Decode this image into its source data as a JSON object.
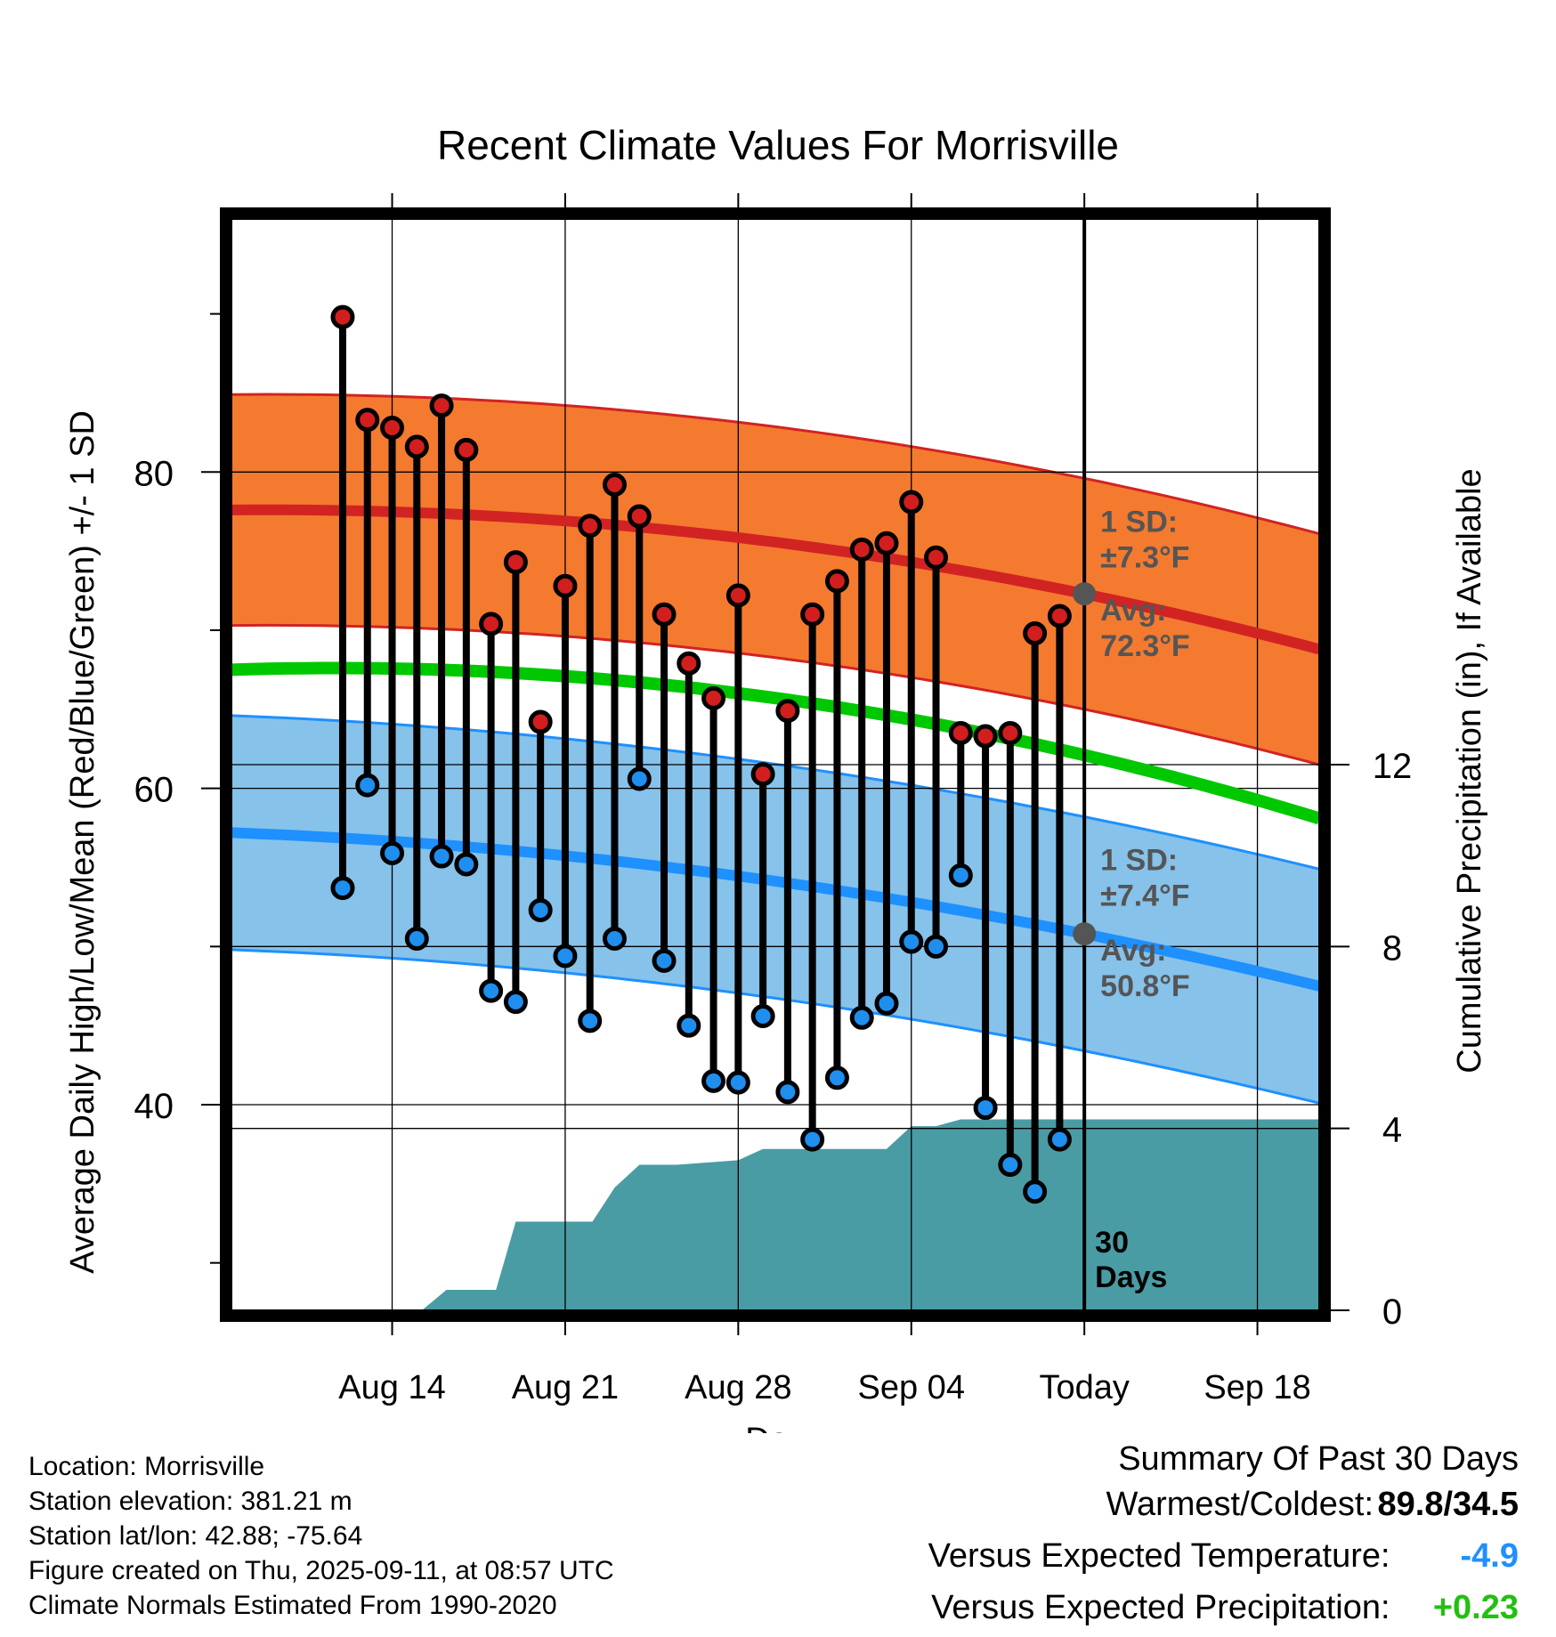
{
  "chart_data": {
    "type": "line",
    "title": "Recent Climate Values For Morrisville",
    "xlabel": "Day",
    "ylabel": "Average Daily High/Low/Mean (Red/Blue/Green) +/- 1 SD",
    "y2label": "Cumulative Precipitation (in), If Available",
    "x_range_days": [
      -34.5,
      9.5
    ],
    "ylim": [
      27,
      96
    ],
    "y2lim": [
      0,
      24
    ],
    "x_ticks": [
      {
        "day": -28,
        "label": "Aug 14"
      },
      {
        "day": -21,
        "label": "Aug 21"
      },
      {
        "day": -14,
        "label": "Aug 28"
      },
      {
        "day": -7,
        "label": "Sep 04"
      },
      {
        "day": 0,
        "label": "Today"
      },
      {
        "day": 7,
        "label": "Sep 18"
      }
    ],
    "y_ticks": [
      40,
      60,
      80
    ],
    "y_minor_ticks": [
      30,
      50,
      70,
      90
    ],
    "y2_ticks": [
      0,
      4,
      8,
      12
    ],
    "grid": true,
    "days": [
      -30,
      -29,
      -28,
      -27,
      -26,
      -25,
      -24,
      -23,
      -22,
      -21,
      -20,
      -19,
      -18,
      -17,
      -16,
      -15,
      -14,
      -13,
      -12,
      -11,
      -10,
      -9,
      -8,
      -7,
      -6,
      -5,
      -4,
      -3,
      -2,
      -1
    ],
    "highs": [
      89.8,
      83.3,
      82.8,
      81.6,
      84.2,
      81.4,
      70.4,
      74.3,
      64.2,
      72.8,
      76.6,
      79.2,
      77.2,
      71.0,
      67.9,
      65.7,
      72.2,
      60.9,
      64.9,
      71.0,
      73.1,
      75.1,
      75.5,
      78.1,
      74.6,
      63.5,
      63.3,
      63.5,
      69.8,
      70.9
    ],
    "lows": [
      53.7,
      60.2,
      55.9,
      50.5,
      55.7,
      55.2,
      47.2,
      46.5,
      52.3,
      49.4,
      45.3,
      50.5,
      60.6,
      49.1,
      45.0,
      41.5,
      41.4,
      45.6,
      40.8,
      37.8,
      41.7,
      45.5,
      46.4,
      50.3,
      50.0,
      54.5,
      39.8,
      36.2,
      34.5,
      37.8
    ],
    "precip_cumulative": [
      [
        -34.5,
        0
      ],
      [
        -26.8,
        0
      ],
      [
        -25.8,
        0.45
      ],
      [
        -23.8,
        0.45
      ],
      [
        -23.0,
        1.95
      ],
      [
        -20.7,
        1.95
      ],
      [
        -19.9,
        1.95
      ],
      [
        -19.0,
        2.7
      ],
      [
        -18.0,
        3.2
      ],
      [
        -16.5,
        3.2
      ],
      [
        -14.0,
        3.3
      ],
      [
        -13.0,
        3.55
      ],
      [
        -12.0,
        3.55
      ],
      [
        -9.2,
        3.55
      ],
      [
        -8.0,
        3.55
      ],
      [
        -7.0,
        4.05
      ],
      [
        -6.0,
        4.05
      ],
      [
        -5.0,
        4.2
      ],
      [
        9.5,
        4.2
      ]
    ],
    "normal_high": {
      "name": "Avg",
      "value_today": "72.3°F",
      "sd": "±7.3°F",
      "start": 77.6,
      "today": 72.3,
      "end": 68.8,
      "sd_value": 7.3
    },
    "normal_low": {
      "name": "Avg",
      "value_today": "50.8°F",
      "sd": "±7.4°F",
      "start": 57.2,
      "today": 50.8,
      "end": 47.5,
      "sd_value": 7.4
    },
    "normal_mean": {
      "start": 67.5,
      "today": 62.1,
      "end": 58.1
    },
    "annotations": {
      "high_sd_label": "1 SD:",
      "high_sd_value": "±7.3°F",
      "high_avg_label": "Avg:",
      "high_avg_value": "72.3°F",
      "low_sd_label": "1 SD:",
      "low_sd_value": "±7.4°F",
      "low_avg_label": "Avg:",
      "low_avg_value": "50.8°F",
      "period_number": "30",
      "period_unit": "Days"
    },
    "colors": {
      "high_band": "#f47a2f",
      "high_line": "#d22323",
      "low_band": "#86c2ea",
      "low_line": "#1e90ff",
      "mean_line": "#00c800",
      "precip": "#4a9ca4",
      "high_marker": "#d21e1e",
      "low_marker": "#1e8fef",
      "annotation": "#555555"
    }
  },
  "footer": {
    "location": "Location: Morrisville",
    "elevation": "Station elevation: 381.21 m",
    "latlon": "Station lat/lon: 42.88; -75.64",
    "created": "Figure created on Thu, 2025-09-11, at 08:57 UTC",
    "normals": "Climate Normals Estimated From 1990-2020"
  },
  "summary": {
    "title": "Summary Of Past 30 Days",
    "warmest_label": "Warmest/Coldest:",
    "warmest_value": "89.8/34.5",
    "temp_label": "Versus Expected Temperature:",
    "temp_value": "-4.9",
    "temp_color": "#1e90ff",
    "precip_label": "Versus Expected Precipitation:",
    "precip_value": "+0.23",
    "precip_color": "#22c010"
  }
}
